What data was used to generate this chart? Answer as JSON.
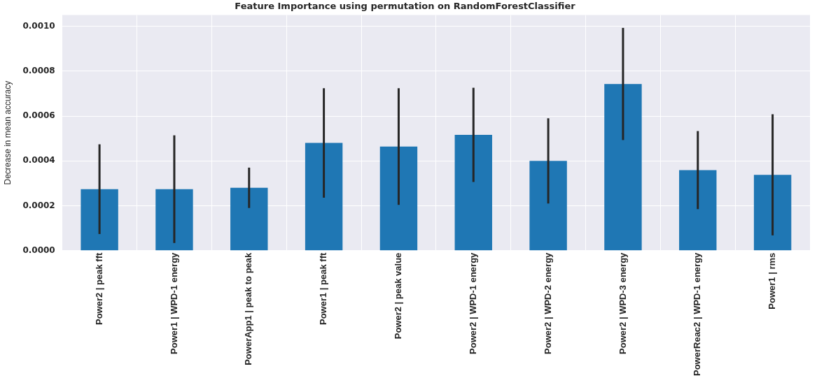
{
  "chart_data": {
    "type": "bar",
    "title": "Feature Importance using permutation on RandomForestClassifier",
    "ylabel": "Decrease in mean accuracy",
    "categories": [
      "Power2 | peak fft",
      "Power1 | WPD-1 energy",
      "PowerApp1 | peak to peak",
      "Power1 | peak fft",
      "Power2 | peak value",
      "Power2 | WPD-1 energy",
      "Power2 | WPD-2 energy",
      "Power2 | WPD-3 energy",
      "PowerReac2 | WPD-1 energy",
      "Power1 | rms"
    ],
    "values": [
      0.000274,
      0.000274,
      0.00028,
      0.00048,
      0.000464,
      0.000516,
      0.0004,
      0.000743,
      0.000359,
      0.000338
    ],
    "errors": [
      0.0002,
      0.00024,
      9e-05,
      0.000244,
      0.00026,
      0.00021,
      0.00019,
      0.00025,
      0.000174,
      0.00027
    ],
    "color": "#1f77b4",
    "ylim": [
      0,
      0.00105
    ],
    "yticks": [
      {
        "value": 0,
        "label": "0.0000"
      },
      {
        "value": 0.0002,
        "label": "0.0002"
      },
      {
        "value": 0.0004,
        "label": "0.0004"
      },
      {
        "value": 0.0006,
        "label": "0.0006"
      },
      {
        "value": 0.0008,
        "label": "0.0008"
      },
      {
        "value": 0.001,
        "label": "0.0010"
      }
    ],
    "grid": true
  }
}
